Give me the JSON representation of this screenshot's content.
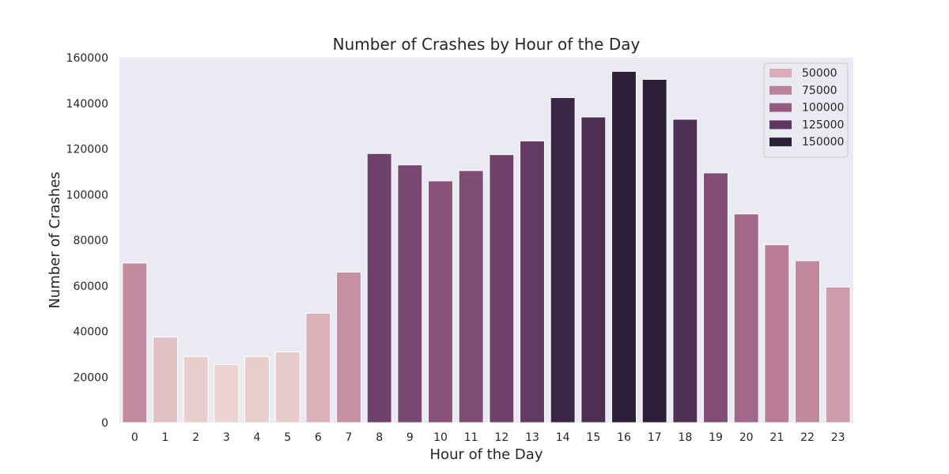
{
  "chart_data": {
    "type": "bar",
    "title": "Number of Crashes by Hour of the Day",
    "xlabel": "Hour of the Day",
    "ylabel": "Number of Crashes",
    "categories": [
      "0",
      "1",
      "2",
      "3",
      "4",
      "5",
      "6",
      "7",
      "8",
      "9",
      "10",
      "11",
      "12",
      "13",
      "14",
      "15",
      "16",
      "17",
      "18",
      "19",
      "20",
      "21",
      "22",
      "23"
    ],
    "values": [
      70000,
      37500,
      29000,
      25500,
      29000,
      31000,
      48000,
      66000,
      118000,
      113000,
      106000,
      110500,
      117500,
      123500,
      142500,
      134000,
      154000,
      150500,
      133000,
      109500,
      91500,
      78000,
      71000,
      59500
    ],
    "ylim": [
      0,
      160000
    ],
    "yticks": [
      0,
      20000,
      40000,
      60000,
      80000,
      100000,
      120000,
      140000,
      160000
    ],
    "grid": false,
    "legend": {
      "placement": "top-right",
      "entries": [
        {
          "label": "50000",
          "color": "#d9aeb7"
        },
        {
          "label": "75000",
          "color": "#bd8199"
        },
        {
          "label": "100000",
          "color": "#965a81"
        },
        {
          "label": "125000",
          "color": "#5f3861"
        },
        {
          "label": "150000",
          "color": "#2d1e3a"
        }
      ]
    },
    "colors": {
      "background": "#eaeaf2",
      "palette_light": "#ebd3d1",
      "palette_dark": "#2d1e3a"
    }
  }
}
